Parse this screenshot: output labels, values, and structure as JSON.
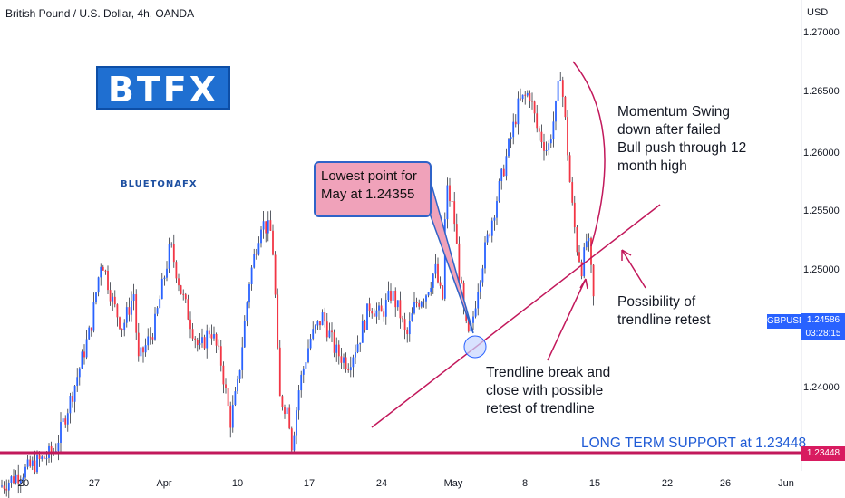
{
  "header": {
    "title": "British Pound / U.S. Dollar, 4h, OANDA",
    "currency": "USD"
  },
  "logo": {
    "text": "BTFX",
    "brand": "BLUETONAFX"
  },
  "annotations": {
    "callout": "Lowest point for May at 1.24355",
    "momentum": "Momentum Swing\ndown after failed\nBull push through 12\nmonth high",
    "retest": "Possibility of\ntrendline retest",
    "breakdown": "Trendline break and\nclose with possible\nretest of trendline",
    "support": "LONG TERM SUPPORT at 1.23448"
  },
  "price_scale": {
    "ticker": "GBPUSD",
    "last_price": "1.24586",
    "countdown": "03:28:15",
    "support_price": "1.23448"
  },
  "colors": {
    "up": "#2962ff",
    "down": "#f23645",
    "trendline": "#c2185b",
    "support": "#c2185b"
  },
  "chart_data": {
    "type": "candlestick",
    "title": "British Pound / U.S. Dollar, 4h, OANDA",
    "y_ticks": [
      "1.27000",
      "1.26500",
      "1.26000",
      "1.25500",
      "1.25000",
      "1.24000"
    ],
    "y_tick_values": [
      1.27,
      1.265,
      1.26,
      1.255,
      1.25,
      1.24
    ],
    "x_ticks": [
      "20",
      "27",
      "Apr",
      "10",
      "17",
      "24",
      "May",
      "8",
      "15",
      "22",
      "26",
      "Jun"
    ],
    "ylim": [
      1.232,
      1.2715
    ],
    "last_price": 1.24586,
    "support_level": 1.23448,
    "lowest_point_may": 1.24355,
    "price_path": [
      [
        0,
        1.2315
      ],
      [
        30,
        1.233
      ],
      [
        60,
        1.2345
      ],
      [
        82,
        1.24
      ],
      [
        100,
        1.245
      ],
      [
        112,
        1.251
      ],
      [
        125,
        1.247
      ],
      [
        135,
        1.245
      ],
      [
        148,
        1.248
      ],
      [
        152,
        1.242
      ],
      [
        170,
        1.245
      ],
      [
        188,
        1.252
      ],
      [
        200,
        1.248
      ],
      [
        212,
        1.245
      ],
      [
        220,
        1.243
      ],
      [
        232,
        1.245
      ],
      [
        244,
        1.242
      ],
      [
        254,
        1.237
      ],
      [
        262,
        1.24
      ],
      [
        275,
        1.249
      ],
      [
        288,
        1.254
      ],
      [
        300,
        1.253
      ],
      [
        304,
        1.247
      ],
      [
        308,
        1.239
      ],
      [
        318,
        1.238
      ],
      [
        322,
        1.235
      ],
      [
        330,
        1.24
      ],
      [
        342,
        1.244
      ],
      [
        356,
        1.246
      ],
      [
        370,
        1.243
      ],
      [
        384,
        1.242
      ],
      [
        396,
        1.244
      ],
      [
        408,
        1.247
      ],
      [
        420,
        1.246
      ],
      [
        432,
        1.248
      ],
      [
        442,
        1.246
      ],
      [
        448,
        1.244
      ],
      [
        458,
        1.247
      ],
      [
        470,
        1.248
      ],
      [
        480,
        1.25
      ],
      [
        488,
        1.247
      ],
      [
        492,
        1.257
      ],
      [
        500,
        1.255
      ],
      [
        506,
        1.25
      ],
      [
        512,
        1.246
      ],
      [
        516,
        1.244
      ],
      [
        520,
        1.245
      ],
      [
        528,
        1.249
      ],
      [
        536,
        1.252
      ],
      [
        548,
        1.256
      ],
      [
        560,
        1.26
      ],
      [
        572,
        1.264
      ],
      [
        584,
        1.265
      ],
      [
        592,
        1.262
      ],
      [
        604,
        1.26
      ],
      [
        614,
        1.264
      ],
      [
        618,
        1.267
      ],
      [
        624,
        1.262
      ],
      [
        630,
        1.256
      ],
      [
        636,
        1.252
      ],
      [
        642,
        1.25
      ],
      [
        648,
        1.253
      ],
      [
        654,
        1.248
      ],
      [
        656,
        1.246
      ]
    ]
  }
}
